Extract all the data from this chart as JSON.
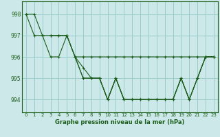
{
  "xlabel": "Graphe pression niveau de la mer (hPa)",
  "xlim": [
    -0.5,
    23.5
  ],
  "ylim": [
    993.4,
    998.6
  ],
  "yticks": [
    994,
    995,
    996,
    997,
    998
  ],
  "xticks": [
    0,
    1,
    2,
    3,
    4,
    5,
    6,
    7,
    8,
    9,
    10,
    11,
    12,
    13,
    14,
    15,
    16,
    17,
    18,
    19,
    20,
    21,
    22,
    23
  ],
  "background_color": "#cce8e8",
  "grid_color": "#99cccc",
  "line_color": "#1a5c1a",
  "series": [
    [
      998.0,
      998.0,
      997.0,
      996.0,
      996.0,
      997.0,
      996.0,
      995.0,
      995.0,
      995.0,
      994.0,
      995.0,
      994.0,
      994.0,
      994.0,
      994.0,
      994.0,
      994.0,
      994.0,
      995.0,
      994.0,
      995.0,
      996.0,
      996.0
    ],
    [
      998.0,
      997.0,
      997.0,
      997.0,
      997.0,
      997.0,
      996.0,
      996.0,
      996.0,
      996.0,
      996.0,
      996.0,
      996.0,
      996.0,
      996.0,
      996.0,
      996.0,
      996.0,
      996.0,
      996.0,
      996.0,
      996.0,
      996.0,
      996.0
    ],
    [
      null,
      null,
      null,
      997.0,
      997.0,
      997.0,
      996.0,
      995.0,
      995.0,
      995.0,
      994.0,
      995.0,
      994.0,
      994.0,
      994.0,
      994.0,
      994.0,
      994.0,
      994.0,
      995.0,
      994.0,
      995.0,
      996.0,
      996.0
    ],
    [
      null,
      null,
      null,
      null,
      null,
      null,
      996.0,
      995.5,
      995.0,
      995.0,
      994.0,
      995.0,
      994.0,
      994.0,
      994.0,
      994.0,
      994.0,
      994.0,
      994.0,
      995.0,
      994.0,
      995.0,
      996.0,
      996.0
    ]
  ]
}
